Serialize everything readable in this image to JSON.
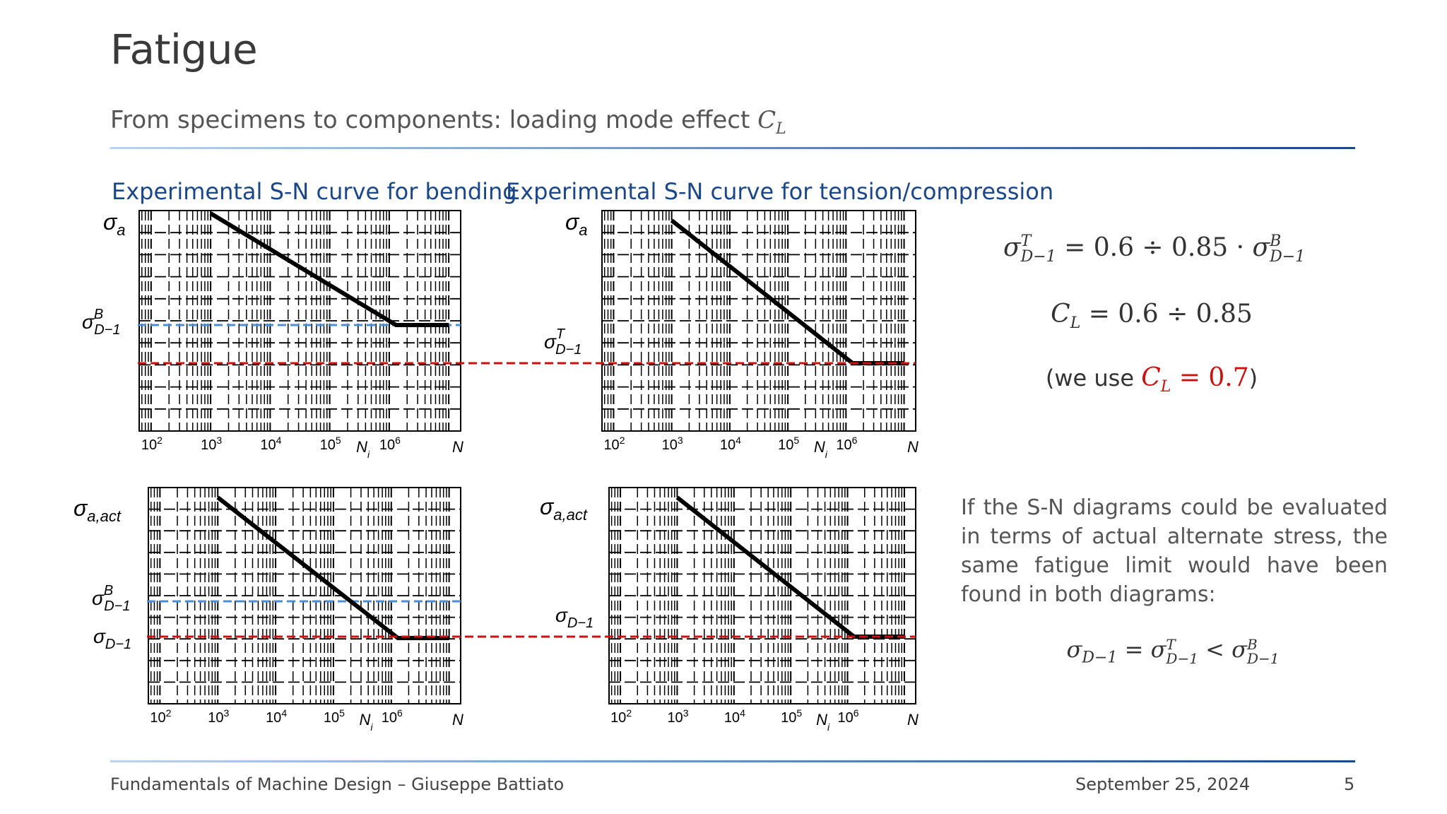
{
  "slide": {
    "title": "Fatigue",
    "subtitle": "From specimens to components: loading mode effect",
    "subtitle_symbol": "C",
    "subtitle_symbol_sub": "L"
  },
  "panels": {
    "bending_title": "Experimental S-N curve for bending",
    "tension_title": "Experimental S-N curve for tension/compression"
  },
  "chart_data": [
    {
      "type": "line",
      "title": "Experimental S-N curve for bending",
      "y_axis_label": "σ_a",
      "x_axis_label": "N",
      "x_scale": "log",
      "x_ticks": [
        "10²",
        "10³",
        "10⁴",
        "10⁵",
        "10⁶"
      ],
      "knee_label": "N_i",
      "series": [
        {
          "x": [
            1000,
            1300000,
            10000000
          ],
          "y_relative": [
            1.0,
            0.0,
            0.0
          ]
        }
      ],
      "reference_lines": [
        {
          "label": "σ^B_{D−1}",
          "color": "#4a8fd6"
        },
        {
          "label": "",
          "color": "#cc1111"
        }
      ]
    },
    {
      "type": "line",
      "title": "Experimental S-N curve for tension/compression",
      "y_axis_label": "σ_a",
      "x_axis_label": "N",
      "x_scale": "log",
      "x_ticks": [
        "10²",
        "10³",
        "10⁴",
        "10⁵",
        "10⁶"
      ],
      "knee_label": "N_i",
      "series": [
        {
          "x": [
            1000,
            1300000,
            10000000
          ],
          "y_relative": [
            1.0,
            0.0,
            0.0
          ]
        }
      ],
      "reference_lines": [
        {
          "label": "σ^T_{D−1}",
          "color": "#cc1111"
        }
      ]
    },
    {
      "type": "line",
      "y_axis_label": "σ_{a,act}",
      "x_axis_label": "N",
      "x_scale": "log",
      "x_ticks": [
        "10²",
        "10³",
        "10⁴",
        "10⁵",
        "10⁶"
      ],
      "knee_label": "N_i",
      "series": [
        {
          "x": [
            1000,
            1300000,
            10000000
          ],
          "y_relative": [
            1.0,
            0.0,
            0.0
          ]
        }
      ],
      "reference_lines": [
        {
          "label": "σ^B_{D−1}",
          "color": "#4a8fd6"
        },
        {
          "label": "σ_{D−1}",
          "color": "#cc1111"
        }
      ]
    },
    {
      "type": "line",
      "y_axis_label": "σ_{a,act}",
      "x_axis_label": "N",
      "x_scale": "log",
      "x_ticks": [
        "10²",
        "10³",
        "10⁴",
        "10⁵",
        "10⁶"
      ],
      "knee_label": "N_i",
      "series": [
        {
          "x": [
            1000,
            1300000,
            10000000
          ],
          "y_relative": [
            1.0,
            0.0,
            0.0
          ]
        }
      ],
      "reference_lines": [
        {
          "label": "σ_{D−1}",
          "color": "#cc1111"
        }
      ]
    }
  ],
  "labels": {
    "sigma_a": "σ",
    "sigma_a_sub": "a",
    "sigma_aact_sub": "a,act",
    "sigma_D1_sub": "D−1",
    "sup_B": "B",
    "sup_T": "T",
    "N": "N",
    "Ni": "N",
    "Ni_sub": "i",
    "ticks": [
      "10",
      "10",
      "10",
      "10",
      "10"
    ],
    "tick_exps": [
      "2",
      "3",
      "4",
      "5",
      "6"
    ]
  },
  "equations": {
    "eq1_rhs": "= 0.6 ÷ 0.85 ·",
    "eq2_lhs": "C",
    "eq2_sub": "L",
    "eq2_rhs": "= 0.6 ÷ 0.85",
    "eq3_prefix": "(we use ",
    "eq3_value": "= 0.7",
    "eq3_suffix": ")",
    "eq4_eq": "=",
    "eq4_lt": "<",
    "red_color": "#cc1111"
  },
  "note_text": "If the S-N diagrams could be evaluated in terms of actual alternate stress, the same fatigue limit would have been found in both diagrams:",
  "footer": {
    "left": "Fundamentals of Machine Design – Giuseppe Battiato",
    "date": "September 25, 2024",
    "page": "5"
  },
  "colors": {
    "accent": "#1b4788",
    "blue_line": "#4a8fd6",
    "red_line": "#cc1111"
  }
}
